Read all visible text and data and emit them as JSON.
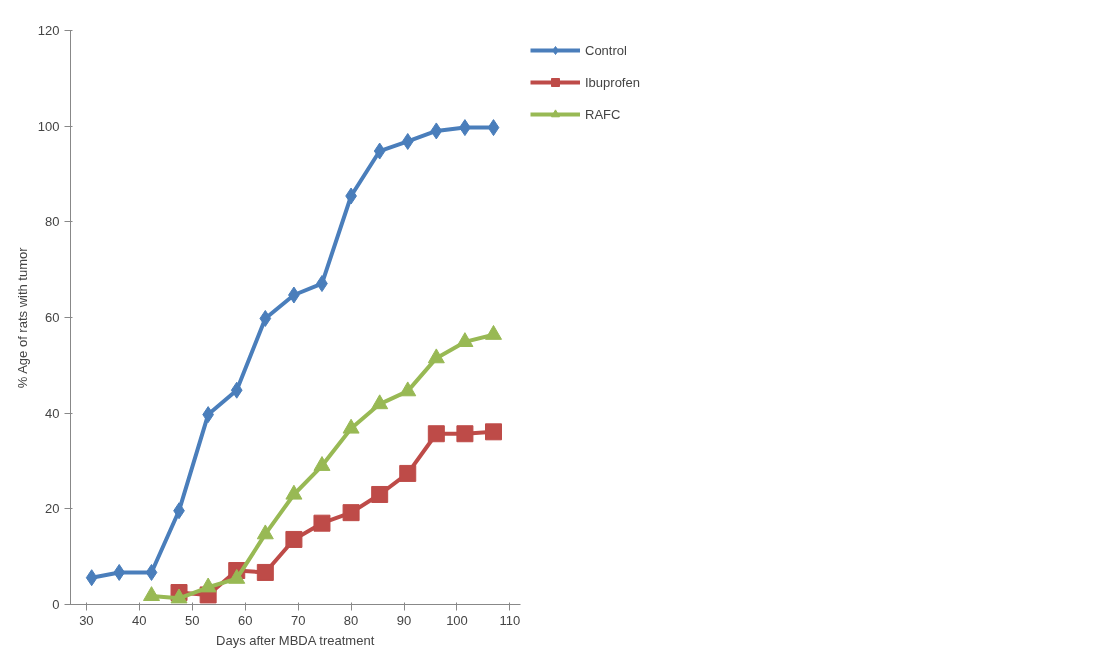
{
  "chart_data": {
    "type": "line",
    "xlabel": "Days after MBDA treatment",
    "ylabel": "% Age of rats with tumor",
    "xlim": [
      27,
      112
    ],
    "xticks": [
      30,
      40,
      50,
      60,
      70,
      80,
      90,
      100,
      110
    ],
    "ylim": [
      0,
      120
    ],
    "yticks": [
      0,
      20,
      40,
      60,
      80,
      100,
      120
    ],
    "grid": false,
    "legend": "top right",
    "line_style": "solid",
    "series": [
      {
        "name": "Control",
        "color": "#4a7ebb",
        "marker": "diamond",
        "x": [
          31,
          36.2,
          42.3,
          47.5,
          53,
          58.4,
          63.8,
          69.2,
          74.5,
          80,
          85.4,
          90.7,
          96.1,
          101.5,
          106.9
        ],
        "values": [
          5.6,
          6.7,
          6.7,
          19.6,
          39.7,
          44.8,
          59.8,
          64.7,
          67.1,
          85.4,
          94.8,
          96.8,
          99,
          99.7,
          99.7
        ]
      },
      {
        "name": "Ibuprofen",
        "color": "#be4b48",
        "marker": "square",
        "x": [
          47.5,
          53,
          58.4,
          63.8,
          69.2,
          74.5,
          80,
          85.4,
          90.7,
          96.1,
          101.5,
          106.9
        ],
        "values": [
          2.5,
          2,
          7.1,
          6.7,
          13.6,
          17,
          19.2,
          23,
          27.4,
          35.7,
          35.7,
          36.1
        ]
      },
      {
        "name": "RAFC",
        "color": "#98b954",
        "marker": "triangle",
        "x": [
          42.3,
          47.5,
          53,
          58.4,
          63.8,
          69.2,
          74.5,
          80,
          85.4,
          90.7,
          96.1,
          101.5,
          106.9
        ],
        "values": [
          1.8,
          1.3,
          3.6,
          5.4,
          14.7,
          23,
          29,
          36.8,
          41.9,
          44.6,
          51.5,
          54.9,
          56.4
        ]
      }
    ]
  }
}
